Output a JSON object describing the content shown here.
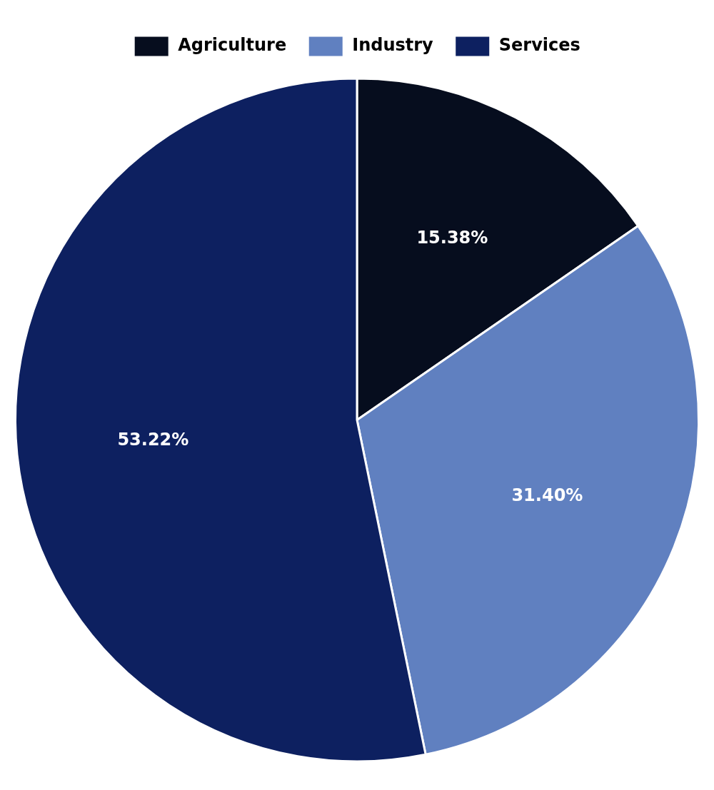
{
  "chart_data": {
    "type": "pie",
    "categories": [
      "Agriculture",
      "Industry",
      "Services"
    ],
    "values": [
      15.38,
      31.4,
      53.22
    ],
    "value_labels": [
      "15.38%",
      "31.40%",
      "53.22%"
    ],
    "colors": [
      "#060d1e",
      "#6080c0",
      "#0d2060"
    ],
    "data_labels": true,
    "legend": "top"
  }
}
